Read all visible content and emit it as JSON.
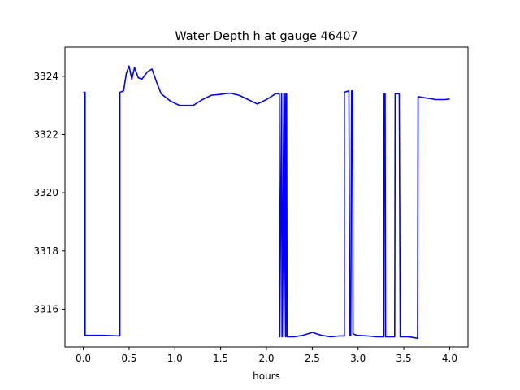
{
  "chart_data": {
    "type": "line",
    "title": "Water Depth h at gauge 46407",
    "xlabel": "hours",
    "ylabel": "",
    "xlim": [
      -0.2,
      4.2
    ],
    "ylim": [
      3314.7,
      3325.0
    ],
    "grid": false,
    "line_color": "#0000ff",
    "x_ticks": [
      0.0,
      0.5,
      1.0,
      1.5,
      2.0,
      2.5,
      3.0,
      3.5,
      4.0
    ],
    "x_tick_labels": [
      "0.0",
      "0.5",
      "1.0",
      "1.5",
      "2.0",
      "2.5",
      "3.0",
      "3.5",
      "4.0"
    ],
    "y_ticks": [
      3316,
      3318,
      3320,
      3322,
      3324
    ],
    "y_tick_labels": [
      "3316",
      "3318",
      "3320",
      "3322",
      "3324"
    ],
    "series": [
      {
        "x": [
          0.0,
          0.02,
          0.02,
          0.2,
          0.4,
          0.4,
          0.44,
          0.47,
          0.5,
          0.53,
          0.56,
          0.6,
          0.64,
          0.7,
          0.75,
          0.8,
          0.85,
          0.95,
          1.05,
          1.2,
          1.3,
          1.4,
          1.5,
          1.6,
          1.7,
          1.8,
          1.9,
          2.0,
          2.1,
          2.14,
          2.145,
          2.165,
          2.17,
          2.19,
          2.19,
          2.205,
          2.21,
          2.22,
          2.225,
          2.3,
          2.4,
          2.5,
          2.6,
          2.7,
          2.8,
          2.85,
          2.85,
          2.9,
          2.91,
          2.92,
          2.93,
          2.94,
          2.945,
          2.985,
          2.99,
          3.1,
          3.2,
          3.28,
          3.285,
          3.295,
          3.3,
          3.4,
          3.405,
          3.45,
          3.46,
          3.55,
          3.65,
          3.655,
          3.75,
          3.85,
          3.95,
          4.0
        ],
        "y": [
          3323.45,
          3323.45,
          3315.1,
          3315.1,
          3315.08,
          3323.45,
          3323.5,
          3324.1,
          3324.35,
          3323.9,
          3324.3,
          3323.95,
          3323.9,
          3324.15,
          3324.25,
          3323.8,
          3323.4,
          3323.15,
          3323.0,
          3323.0,
          3323.2,
          3323.35,
          3323.38,
          3323.42,
          3323.35,
          3323.2,
          3323.05,
          3323.2,
          3323.4,
          3323.4,
          3315.05,
          3323.4,
          3315.05,
          3323.4,
          3315.05,
          3323.4,
          3315.05,
          3323.4,
          3315.05,
          3315.05,
          3315.1,
          3315.2,
          3315.1,
          3315.05,
          3315.08,
          3315.08,
          3323.45,
          3323.5,
          3315.1,
          3315.1,
          3323.5,
          3323.5,
          3315.15,
          3315.1,
          3315.1,
          3315.08,
          3315.05,
          3315.05,
          3323.4,
          3323.4,
          3315.05,
          3315.05,
          3323.4,
          3323.4,
          3315.05,
          3315.05,
          3315.0,
          3323.3,
          3323.25,
          3323.2,
          3323.2,
          3323.22
        ]
      }
    ]
  }
}
